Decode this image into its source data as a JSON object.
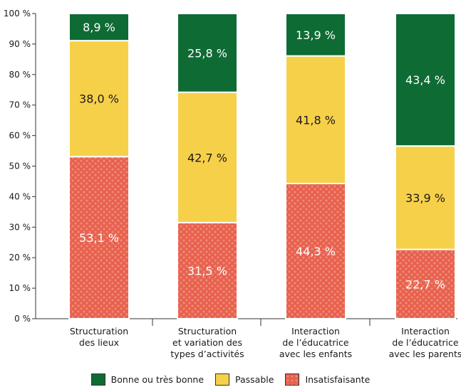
{
  "chart_data": {
    "type": "bar",
    "stacked": true,
    "categories": [
      [
        "Structuration",
        "des lieux"
      ],
      [
        "Structuration",
        "et variation des",
        "types d’activités"
      ],
      [
        "Interaction",
        "de l’éducatrice",
        "avec les enfants"
      ],
      [
        "Interaction",
        "de l’éducatrice",
        "avec les parents"
      ]
    ],
    "series": [
      {
        "name": "Insatisfaisante",
        "values": [
          53.1,
          31.5,
          44.3,
          22.7
        ],
        "labels": [
          "53,1 %",
          "31,5 %",
          "44,3 %",
          "22,7 %"
        ],
        "color": "#e8604f",
        "label_color": "#ffffff"
      },
      {
        "name": "Passable",
        "values": [
          38.0,
          42.7,
          41.8,
          33.9
        ],
        "labels": [
          "38,0 %",
          "42,7 %",
          "41,8 %",
          "33,9 %"
        ],
        "color": "#f7d04a",
        "label_color": "#1a1a1a"
      },
      {
        "name": "Bonne ou très bonne",
        "values": [
          8.9,
          25.8,
          13.9,
          43.4
        ],
        "labels": [
          "8,9 %",
          "25,8 %",
          "13,9 %",
          "43,4 %"
        ],
        "color": "#0f6b34",
        "label_color": "#ffffff"
      }
    ],
    "y_ticks": [
      "0 %",
      "10 %",
      "20 %",
      "30 %",
      "40 %",
      "50 %",
      "60 %",
      "70 %",
      "80 %",
      "90 %",
      "100 %"
    ],
    "ylim": [
      0,
      100
    ],
    "legend_position": "bottom",
    "legend_order": [
      "Bonne ou très bonne",
      "Passable",
      "Insatisfaisante"
    ],
    "grid": false
  }
}
